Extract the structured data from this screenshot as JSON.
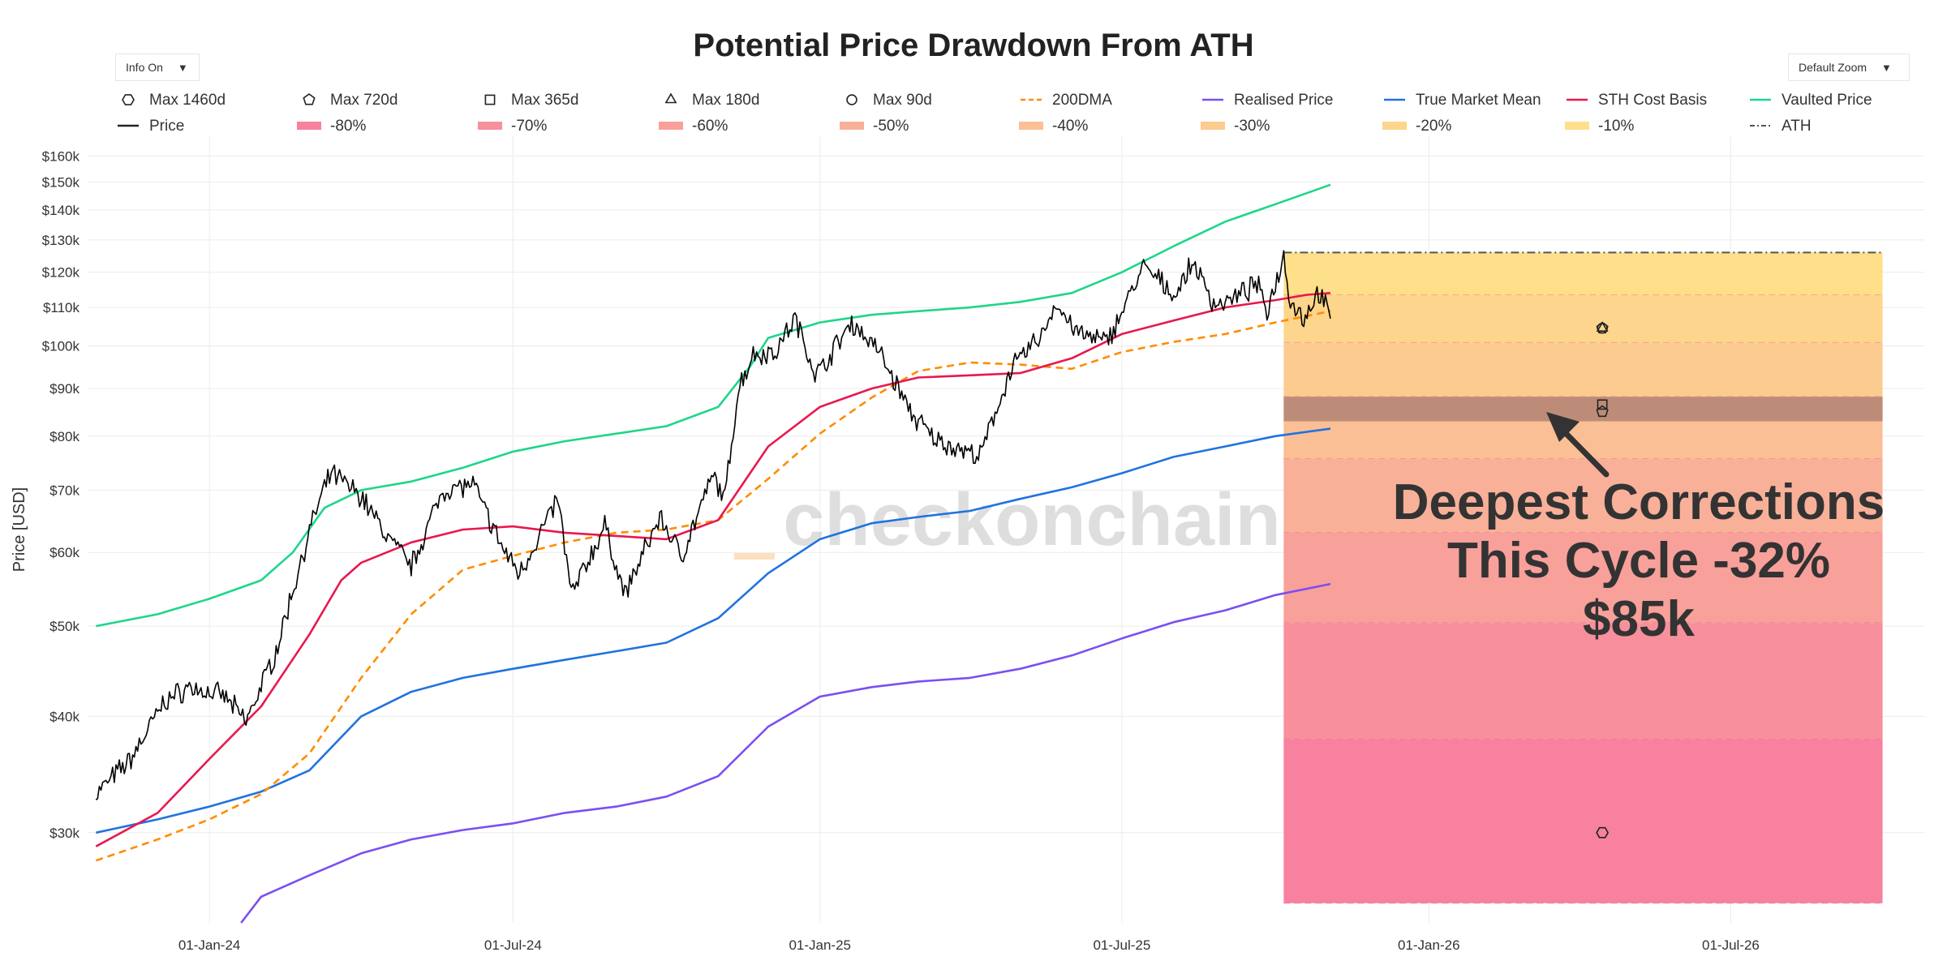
{
  "header": {
    "title": "Potential Price Drawdown From ATH",
    "info_toggle": "Info On",
    "zoom_select": "Default Zoom"
  },
  "watermark": "checkonchain",
  "annotation": {
    "line1": "Deepest Corrections",
    "line2": "This Cycle -32%",
    "line3": "$85k"
  },
  "colors": {
    "price": "#000000",
    "dma200": "#ff8c00",
    "realised": "#7b4ff0",
    "true_market_mean": "#1f73e0",
    "sth_cost_basis": "#e8184f",
    "vaulted_price": "#1ed68a",
    "ath": "#555555"
  },
  "legend": {
    "row1": [
      {
        "label": "Max 1460d",
        "symbol": "hexagon"
      },
      {
        "label": "Max 720d",
        "symbol": "pentagon"
      },
      {
        "label": "Max 365d",
        "symbol": "square"
      },
      {
        "label": "Max 180d",
        "symbol": "triangle"
      },
      {
        "label": "Max 90d",
        "symbol": "circle"
      },
      {
        "label": "200DMA",
        "symbol": "dash",
        "color": "#ff8c00"
      },
      {
        "label": "Realised Price",
        "symbol": "line",
        "color": "#7b4ff0"
      },
      {
        "label": "True Market Mean",
        "symbol": "line",
        "color": "#1f73e0"
      },
      {
        "label": "STH Cost Basis",
        "symbol": "line",
        "color": "#e8184f"
      },
      {
        "label": "Vaulted Price",
        "symbol": "line",
        "color": "#1ed68a"
      }
    ],
    "row2": [
      {
        "label": "Price",
        "symbol": "line",
        "color": "#222222"
      },
      {
        "label": "-80%",
        "symbol": "band",
        "color": "#f7819f"
      },
      {
        "label": "-70%",
        "symbol": "band",
        "color": "#f7909c"
      },
      {
        "label": "-60%",
        "symbol": "band",
        "color": "#f8a09a"
      },
      {
        "label": "-50%",
        "symbol": "band",
        "color": "#f9b098"
      },
      {
        "label": "-40%",
        "symbol": "band",
        "color": "#fbbf95"
      },
      {
        "label": "-30%",
        "symbol": "band",
        "color": "#fccb90"
      },
      {
        "label": "-20%",
        "symbol": "band",
        "color": "#fdd58c"
      },
      {
        "label": "-10%",
        "symbol": "band",
        "color": "#fee08a"
      },
      {
        "label": "ATH",
        "symbol": "dashdot",
        "color": "#555555"
      }
    ]
  },
  "chart_data": {
    "type": "line",
    "title": "Potential Price Drawdown From ATH",
    "ylabel": "Price [USD]",
    "xlabel": "",
    "y_scale": "log",
    "ylim": [
      24000,
      168000
    ],
    "xlim": [
      "2023-10-20",
      "2026-10-25"
    ],
    "x_ticks": [
      {
        "date": "2024-01-01",
        "label": "01-Jan-24"
      },
      {
        "date": "2024-07-01",
        "label": "01-Jul-24"
      },
      {
        "date": "2025-01-01",
        "label": "01-Jan-25"
      },
      {
        "date": "2025-07-01",
        "label": "01-Jul-25"
      },
      {
        "date": "2026-01-01",
        "label": "01-Jan-26"
      },
      {
        "date": "2026-07-01",
        "label": "01-Jul-26"
      }
    ],
    "y_ticks": [
      {
        "value": 30000,
        "label": "$30k"
      },
      {
        "value": 40000,
        "label": "$40k"
      },
      {
        "value": 50000,
        "label": "$50k"
      },
      {
        "value": 60000,
        "label": "$60k"
      },
      {
        "value": 70000,
        "label": "$70k"
      },
      {
        "value": 80000,
        "label": "$80k"
      },
      {
        "value": 90000,
        "label": "$90k"
      },
      {
        "value": 100000,
        "label": "$100k"
      },
      {
        "value": 110000,
        "label": "$110k"
      },
      {
        "value": 120000,
        "label": "$120k"
      },
      {
        "value": 130000,
        "label": "$130k"
      },
      {
        "value": 140000,
        "label": "$140k"
      },
      {
        "value": 150000,
        "label": "$150k"
      },
      {
        "value": 160000,
        "label": "$160k"
      }
    ],
    "series": [
      {
        "name": "Price",
        "key": "price",
        "style": "solid",
        "x": [
          "2023-10-25",
          "2023-11-15",
          "2023-12-05",
          "2023-12-20",
          "2024-01-10",
          "2024-01-23",
          "2024-02-10",
          "2024-02-28",
          "2024-03-05",
          "2024-03-14",
          "2024-04-01",
          "2024-04-15",
          "2024-05-01",
          "2024-05-20",
          "2024-06-07",
          "2024-06-25",
          "2024-07-05",
          "2024-07-28",
          "2024-08-05",
          "2024-08-25",
          "2024-09-06",
          "2024-09-27",
          "2024-10-10",
          "2024-10-29",
          "2024-11-05",
          "2024-11-13",
          "2024-11-22",
          "2024-12-05",
          "2024-12-17",
          "2024-12-30",
          "2025-01-20",
          "2025-02-05",
          "2025-02-25",
          "2025-03-10",
          "2025-04-07",
          "2025-04-25",
          "2025-05-15",
          "2025-05-22",
          "2025-06-05",
          "2025-06-22",
          "2025-07-14",
          "2025-08-02",
          "2025-08-13",
          "2025-08-25",
          "2025-09-05",
          "2025-09-20",
          "2025-09-26",
          "2025-10-06",
          "2025-10-10",
          "2025-10-18",
          "2025-10-27",
          "2025-11-03"
        ],
        "y": [
          33000,
          36000,
          41500,
          43000,
          42000,
          39500,
          47000,
          61500,
          66500,
          73000,
          69000,
          63000,
          58000,
          70000,
          71000,
          60500,
          57000,
          68500,
          54000,
          64000,
          54000,
          65500,
          59500,
          72500,
          68500,
          90000,
          98000,
          98500,
          107000,
          93000,
          106000,
          99000,
          84500,
          79500,
          76000,
          94000,
          103500,
          111000,
          103000,
          101000,
          121500,
          113500,
          123000,
          111000,
          112000,
          116500,
          109000,
          125000,
          112000,
          107000,
          114500,
          107000
        ]
      },
      {
        "name": "200DMA",
        "key": "dma200",
        "style": "dash",
        "x": [
          "2023-10-25",
          "2023-12-01",
          "2024-01-01",
          "2024-02-01",
          "2024-03-01",
          "2024-04-01",
          "2024-05-01",
          "2024-06-01",
          "2024-07-01",
          "2024-08-01",
          "2024-09-01",
          "2024-10-01",
          "2024-11-01",
          "2024-12-01",
          "2025-01-01",
          "2025-02-01",
          "2025-03-01",
          "2025-04-01",
          "2025-05-01",
          "2025-06-01",
          "2025-07-01",
          "2025-08-01",
          "2025-09-01",
          "2025-10-01",
          "2025-11-03"
        ],
        "y": [
          28000,
          29500,
          31000,
          33000,
          36500,
          44000,
          51500,
          57500,
          59500,
          61500,
          63000,
          63500,
          65000,
          72000,
          80500,
          88000,
          94000,
          96000,
          95500,
          94500,
          98500,
          101000,
          103000,
          106000,
          109000
        ]
      },
      {
        "name": "Realised Price",
        "key": "realised",
        "style": "solid",
        "x": [
          "2024-01-20",
          "2024-02-01",
          "2024-03-01",
          "2024-04-01",
          "2024-05-01",
          "2024-06-01",
          "2024-07-01",
          "2024-08-01",
          "2024-09-01",
          "2024-10-01",
          "2024-11-01",
          "2024-12-01",
          "2025-01-01",
          "2025-02-01",
          "2025-03-01",
          "2025-04-01",
          "2025-05-01",
          "2025-06-01",
          "2025-07-01",
          "2025-08-01",
          "2025-09-01",
          "2025-10-01",
          "2025-11-03"
        ],
        "y": [
          24000,
          25600,
          27000,
          28500,
          29500,
          30200,
          30700,
          31500,
          32000,
          32800,
          34500,
          39000,
          42000,
          43000,
          43600,
          44000,
          45000,
          46500,
          48500,
          50500,
          52000,
          54000,
          55500
        ]
      },
      {
        "name": "True Market Mean",
        "key": "true_market_mean",
        "style": "solid",
        "x": [
          "2023-10-25",
          "2023-12-01",
          "2024-01-01",
          "2024-02-01",
          "2024-03-01",
          "2024-04-01",
          "2024-05-01",
          "2024-06-01",
          "2024-07-01",
          "2024-08-01",
          "2024-09-01",
          "2024-10-01",
          "2024-11-01",
          "2024-12-01",
          "2025-01-01",
          "2025-02-01",
          "2025-03-01",
          "2025-04-01",
          "2025-05-01",
          "2025-06-01",
          "2025-07-01",
          "2025-08-01",
          "2025-09-01",
          "2025-10-01",
          "2025-11-03"
        ],
        "y": [
          30000,
          31000,
          32000,
          33200,
          35000,
          40000,
          42500,
          44000,
          45000,
          46000,
          47000,
          48000,
          51000,
          57000,
          62000,
          64500,
          65500,
          66500,
          68500,
          70500,
          73000,
          76000,
          78000,
          80000,
          81500
        ]
      },
      {
        "name": "STH Cost Basis",
        "key": "sth_cost_basis",
        "style": "solid",
        "x": [
          "2023-10-25",
          "2023-12-01",
          "2024-01-01",
          "2024-02-01",
          "2024-03-01",
          "2024-03-20",
          "2024-04-01",
          "2024-05-01",
          "2024-06-01",
          "2024-07-01",
          "2024-08-01",
          "2024-09-01",
          "2024-10-01",
          "2024-11-01",
          "2024-12-01",
          "2025-01-01",
          "2025-02-01",
          "2025-03-01",
          "2025-04-01",
          "2025-05-01",
          "2025-06-01",
          "2025-07-01",
          "2025-08-01",
          "2025-09-01",
          "2025-10-01",
          "2025-10-20",
          "2025-11-03"
        ],
        "y": [
          29000,
          31500,
          36000,
          41000,
          49000,
          56000,
          58500,
          61500,
          63500,
          64000,
          63000,
          62500,
          62000,
          65000,
          78000,
          86000,
          90000,
          92500,
          93000,
          93500,
          97000,
          103000,
          106500,
          110000,
          112000,
          113500,
          114000
        ]
      },
      {
        "name": "Vaulted Price",
        "key": "vaulted_price",
        "style": "solid",
        "x": [
          "2023-10-25",
          "2023-12-01",
          "2024-01-01",
          "2024-02-01",
          "2024-02-20",
          "2024-03-10",
          "2024-04-01",
          "2024-05-01",
          "2024-06-01",
          "2024-07-01",
          "2024-08-01",
          "2024-09-01",
          "2024-10-01",
          "2024-11-01",
          "2024-11-20",
          "2024-12-01",
          "2025-01-01",
          "2025-02-01",
          "2025-03-01",
          "2025-04-01",
          "2025-05-01",
          "2025-06-01",
          "2025-07-01",
          "2025-08-01",
          "2025-09-01",
          "2025-10-01",
          "2025-11-03"
        ],
        "y": [
          50000,
          51500,
          53500,
          56000,
          60000,
          67000,
          70000,
          71500,
          74000,
          77000,
          79000,
          80500,
          82000,
          86000,
          95000,
          102000,
          106000,
          108000,
          109000,
          110000,
          111500,
          114000,
          120000,
          128000,
          136000,
          142000,
          149000
        ]
      }
    ],
    "ath": {
      "value": 126000,
      "from": "2025-10-06",
      "to": "2026-09-30"
    },
    "drawdown_bands": [
      {
        "label": "-10%",
        "upper": 126000,
        "lower": 113400,
        "color": "#fee08a"
      },
      {
        "label": "-20%",
        "upper": 113400,
        "lower": 100800,
        "color": "#fdd58c"
      },
      {
        "label": "-30%",
        "upper": 100800,
        "lower": 88200,
        "color": "#fccb90"
      },
      {
        "label": "-40%",
        "upper": 88200,
        "lower": 75600,
        "color": "#fbbf95"
      },
      {
        "label": "-50%",
        "upper": 75600,
        "lower": 63000,
        "color": "#f9b098"
      },
      {
        "label": "-60%",
        "upper": 63000,
        "lower": 50400,
        "color": "#f8a09a"
      },
      {
        "label": "-70%",
        "upper": 50400,
        "lower": 37800,
        "color": "#f7909c"
      },
      {
        "label": "-80%",
        "upper": 37800,
        "lower": 25200,
        "color": "#f7819f"
      }
    ],
    "highlight_band": {
      "upper": 88200,
      "lower": 83000,
      "color": "#a77b6f"
    },
    "max_drawdown_markers": [
      {
        "label": "Max 1460d",
        "symbol": "hexagon",
        "date": "2026-04-15",
        "value": 30000
      },
      {
        "label": "Max 720d",
        "symbol": "pentagon",
        "date": "2026-04-15",
        "value": 104500
      },
      {
        "label": "Max 180d",
        "symbol": "triangle",
        "date": "2026-04-15",
        "value": 104500
      },
      {
        "label": "Max 90d",
        "symbol": "circle",
        "date": "2026-04-15",
        "value": 104500
      },
      {
        "label": "Max 365d",
        "symbol": "square",
        "date": "2026-04-15",
        "value": 86500
      },
      {
        "label": "Max 365d (cycle low)",
        "symbol": "pentagon",
        "date": "2026-04-15",
        "value": 85000
      }
    ]
  }
}
